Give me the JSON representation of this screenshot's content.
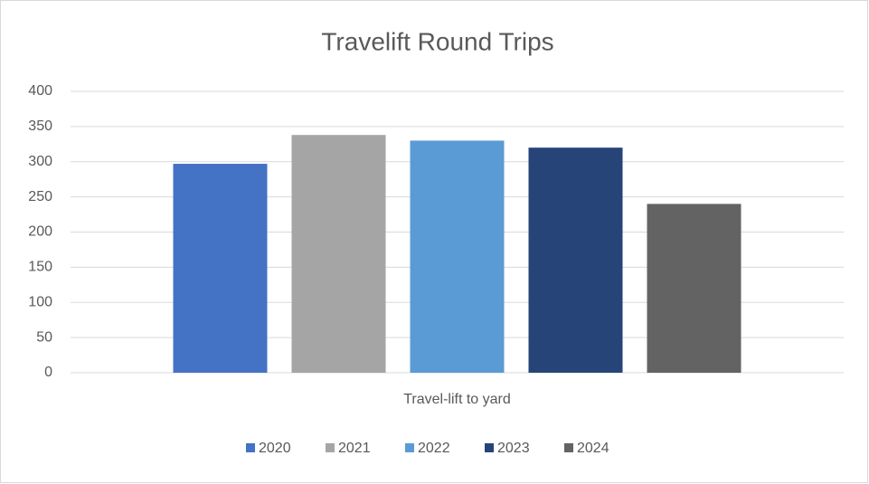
{
  "chart_data": {
    "type": "bar",
    "title": "Travelift Round Trips",
    "categories": [
      "Travel-lift to yard"
    ],
    "series": [
      {
        "name": "2020",
        "color": "#4472c4",
        "values": [
          297
        ]
      },
      {
        "name": "2021",
        "color": "#a5a5a5",
        "values": [
          338
        ]
      },
      {
        "name": "2022",
        "color": "#5b9bd5",
        "values": [
          330
        ]
      },
      {
        "name": "2023",
        "color": "#264478",
        "values": [
          320
        ]
      },
      {
        "name": "2024",
        "color": "#636363",
        "values": [
          240
        ]
      }
    ],
    "ylim": [
      0,
      400
    ],
    "yticks": [
      0,
      50,
      100,
      150,
      200,
      250,
      300,
      350,
      400
    ],
    "grid": true,
    "legend": "bottom"
  }
}
